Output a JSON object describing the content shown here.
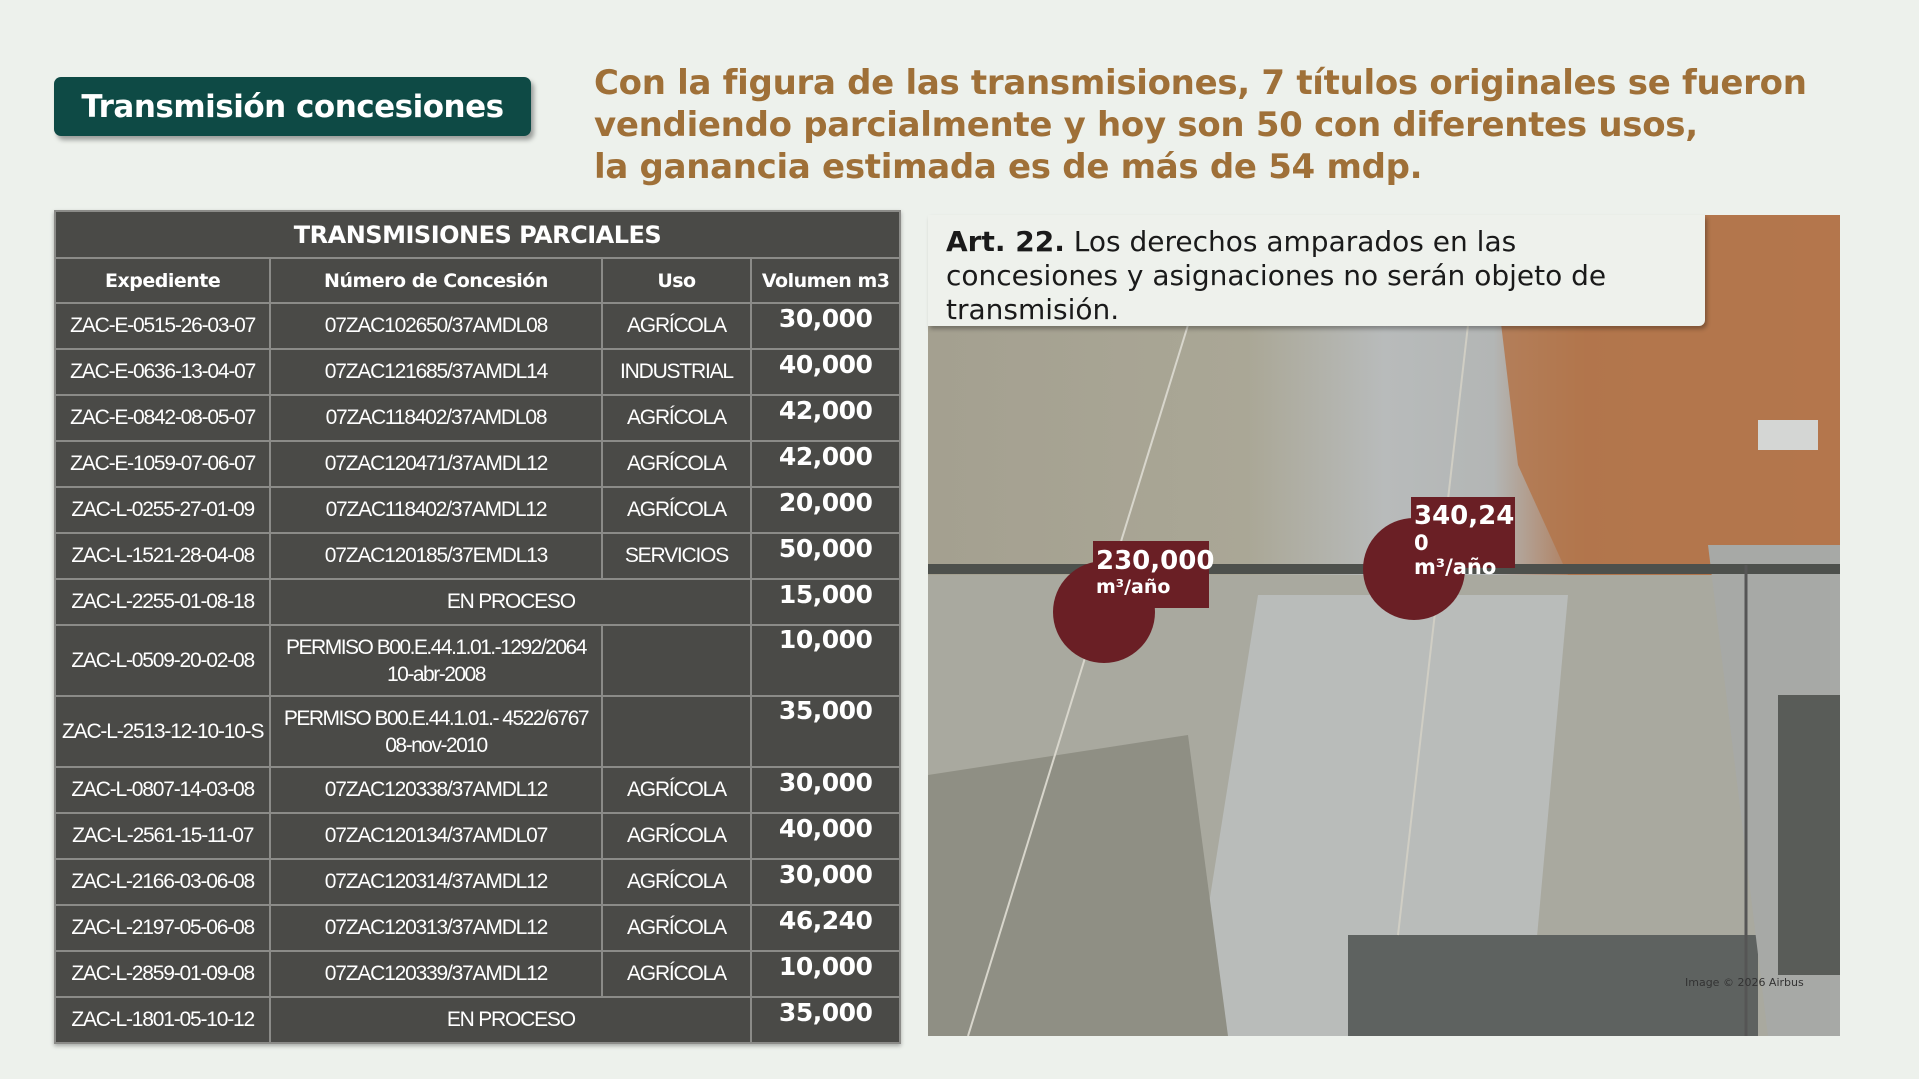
{
  "title": "Transmisión concesiones",
  "headline": [
    "Con la figura de las transmisiones, 7 títulos originales se fueron",
    "vendiendo parcialmente y hoy son 50 con diferentes usos,",
    "la ganancia estimada es de más de 54 mdp."
  ],
  "table": {
    "caption": "TRANSMISIONES PARCIALES",
    "headers": [
      "Expediente",
      "Número de Concesión",
      "Uso",
      "Volumen m3"
    ],
    "rows": [
      [
        "ZAC-E-0515-26-03-07",
        "07ZAC102650/37AMDL08",
        "AGRÍCOLA",
        "30,000"
      ],
      [
        "ZAC-E-0636-13-04-07",
        "07ZAC121685/37AMDL14",
        "INDUSTRIAL",
        "40,000"
      ],
      [
        "ZAC-E-0842-08-05-07",
        "07ZAC118402/37AMDL08",
        "AGRÍCOLA",
        "42,000"
      ],
      [
        "ZAC-E-1059-07-06-07",
        "07ZAC120471/37AMDL12",
        "AGRÍCOLA",
        "42,000"
      ],
      [
        "ZAC-L-0255-27-01-09",
        "07ZAC118402/37AMDL12",
        "AGRÍCOLA",
        "20,000"
      ],
      [
        "ZAC-L-1521-28-04-08",
        "07ZAC120185/37EMDL13",
        "SERVICIOS",
        "50,000"
      ],
      [
        "ZAC-L-2255-01-08-18",
        "EN PROCESO",
        "",
        "15,000"
      ],
      [
        "ZAC-L-0509-20-02-08",
        "PERMISO B00.E.44.1.01.-1292/2064 10-abr-2008",
        "",
        "10,000"
      ],
      [
        "ZAC-L-2513-12-10-10-S",
        "PERMISO B00.E.44.1.01.- 4522/6767 08-nov-2010",
        "",
        "35,000"
      ],
      [
        "ZAC-L-0807-14-03-08",
        "07ZAC120338/37AMDL12",
        "AGRÍCOLA",
        "30,000"
      ],
      [
        "ZAC-L-2561-15-11-07",
        "07ZAC120134/37AMDL07",
        "AGRÍCOLA",
        "40,000"
      ],
      [
        "ZAC-L-2166-03-06-08",
        "07ZAC120314/37AMDL12",
        "AGRÍCOLA",
        "30,000"
      ],
      [
        "ZAC-L-2197-05-06-08",
        "07ZAC120313/37AMDL12",
        "AGRÍCOLA",
        "46,240"
      ],
      [
        "ZAC-L-2859-01-09-08",
        "07ZAC120339/37AMDL12",
        "AGRÍCOLA",
        "10,000"
      ],
      [
        "ZAC-L-1801-05-10-12",
        "EN PROCESO",
        "",
        "35,000"
      ]
    ]
  },
  "article": {
    "label": "Art. 22.",
    "text": " Los derechos amparados en las concesiones y asignaciones no serán objeto de transmisión."
  },
  "map": {
    "marker1": {
      "value": "230,000",
      "unit": "m³/año"
    },
    "marker2": {
      "value": "340,24",
      "unit": "0 m³/año"
    },
    "credit": "Image © 2026 Airbus"
  },
  "colors": {
    "title_bg": "#0e4a45",
    "headline": "#9f7038",
    "table_bg": "#4a4a47",
    "marker": "#6a1f25"
  }
}
